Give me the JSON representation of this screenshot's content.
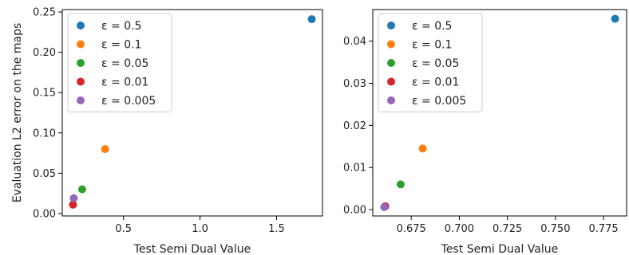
{
  "chart_data": [
    {
      "type": "scatter",
      "xlabel": "Test Semi Dual Value",
      "ylabel": "Evaluation L2 error on the maps",
      "xlim": [
        0.1,
        1.8
      ],
      "ylim": [
        -0.003,
        0.253
      ],
      "xticks": [
        0.5,
        1.0,
        1.5
      ],
      "xtick_labels": [
        "0.5",
        "1.0",
        "1.5"
      ],
      "yticks": [
        0.0,
        0.05,
        0.1,
        0.15,
        0.2,
        0.25
      ],
      "ytick_labels": [
        "0.00",
        "0.05",
        "0.10",
        "0.15",
        "0.20",
        "0.25"
      ],
      "legend_position": "top-left",
      "series": [
        {
          "name": "ε = 0.5",
          "color": "#1f77b4",
          "x": [
            1.73
          ],
          "y": [
            0.241
          ]
        },
        {
          "name": "ε = 0.1",
          "color": "#ff7f0e",
          "x": [
            0.38
          ],
          "y": [
            0.08
          ]
        },
        {
          "name": "ε = 0.05",
          "color": "#2ca02c",
          "x": [
            0.23
          ],
          "y": [
            0.03
          ]
        },
        {
          "name": "ε = 0.01",
          "color": "#d62728",
          "x": [
            0.17
          ],
          "y": [
            0.011
          ]
        },
        {
          "name": "ε = 0.005",
          "color": "#9467bd",
          "x": [
            0.175
          ],
          "y": [
            0.019
          ]
        }
      ]
    },
    {
      "type": "scatter",
      "xlabel": "Test Semi Dual Value",
      "ylabel": "",
      "xlim": [
        0.655,
        0.787
      ],
      "ylim": [
        -0.0015,
        0.0475
      ],
      "xticks": [
        0.675,
        0.7,
        0.725,
        0.75,
        0.775
      ],
      "xtick_labels": [
        "0.675",
        "0.700",
        "0.725",
        "0.750",
        "0.775"
      ],
      "yticks": [
        0.0,
        0.01,
        0.02,
        0.03,
        0.04
      ],
      "ytick_labels": [
        "0.00",
        "0.01",
        "0.02",
        "0.03",
        "0.04"
      ],
      "legend_position": "top-left",
      "series": [
        {
          "name": "ε = 0.5",
          "color": "#1f77b4",
          "x": [
            0.781
          ],
          "y": [
            0.0453
          ]
        },
        {
          "name": "ε = 0.1",
          "color": "#ff7f0e",
          "x": [
            0.681
          ],
          "y": [
            0.0145
          ]
        },
        {
          "name": "ε = 0.05",
          "color": "#2ca02c",
          "x": [
            0.6695
          ],
          "y": [
            0.006
          ]
        },
        {
          "name": "ε = 0.01",
          "color": "#d62728",
          "x": [
            0.6615
          ],
          "y": [
            0.0008
          ]
        },
        {
          "name": "ε = 0.005",
          "color": "#9467bd",
          "x": [
            0.661
          ],
          "y": [
            0.0006
          ]
        }
      ]
    }
  ]
}
